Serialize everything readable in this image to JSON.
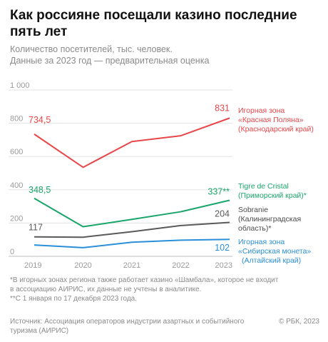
{
  "header": {
    "title": "Как россияне посещали казино последние пять лет",
    "subtitle_line1": "Количество посетителей, тыс. человек.",
    "subtitle_line2": "Данные за 2023 год — предварительная оценка"
  },
  "footnotes": {
    "note1_line1": "*В игорных зонах региона также работает казино «Шамбала», которое не входит",
    "note1_line2": "в ассоциацию АИРИС, их данные не учтены в аналитике.",
    "note2": "**С 1 января по 17 декабря 2023 года."
  },
  "source": {
    "text": "Источник: Ассоциация операторов индустрии азартных и событийного туризма (АИРИС)",
    "credit": "© РБК, 2023"
  },
  "chart_data": {
    "type": "line",
    "x": [
      "2019",
      "2020",
      "2021",
      "2022",
      "2023"
    ],
    "ylim": [
      0,
      1000
    ],
    "yticks": [
      0,
      200,
      400,
      600,
      800,
      1000
    ],
    "ytick_labels": [
      "0",
      "200",
      "400",
      "600",
      "800",
      "1 000"
    ],
    "grid": true,
    "series": [
      {
        "name": "Игорная зона «Красная Поляна» (Краснодарский край)",
        "label_lines": [
          "Игорная зона",
          "«Красная Поляна»",
          "(Краснодарский край)"
        ],
        "color": "#e8474a",
        "values": [
          734.5,
          535,
          690,
          725,
          831
        ],
        "labels": [
          "734,5",
          "",
          "",
          "",
          "831"
        ]
      },
      {
        "name": "Tigre de Cristal (Приморский край)*",
        "label_lines": [
          "Tigre de Cristal",
          "(Приморский край)*"
        ],
        "color": "#1aa56b",
        "values": [
          348.5,
          178,
          222,
          268,
          337
        ],
        "labels": [
          "348,5",
          "",
          "",
          "",
          "337**"
        ]
      },
      {
        "name": "Sobranie (Калининградская область)*",
        "label_lines": [
          "Sobranie",
          "(Калининградская",
          "область)*"
        ],
        "color": "#5a5a5a",
        "values": [
          117,
          115,
          148,
          185,
          204
        ],
        "labels": [
          "117",
          "",
          "",
          "",
          "204"
        ]
      },
      {
        "name": "Игорная зона «Сибирская монета» (Алтайский край)",
        "label_lines": [
          "Игорная зона",
          "«Сибирская монета»",
          "(Алтайский край)"
        ],
        "color": "#2a8fd8",
        "values": [
          68,
          52,
          85,
          97,
          102
        ],
        "labels": [
          "",
          "",
          "",
          "",
          "102"
        ]
      }
    ]
  }
}
